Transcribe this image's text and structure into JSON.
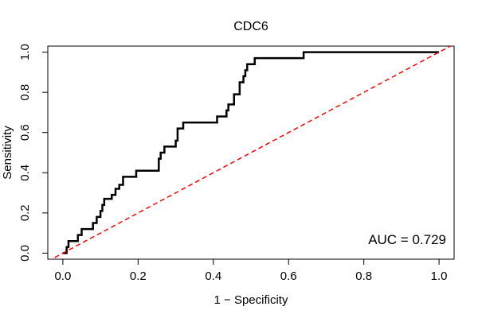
{
  "chart_data": {
    "type": "line",
    "title": "CDC6",
    "xlabel": "1 − Specificity",
    "ylabel": "Sensitivity",
    "xlim": [
      -0.04,
      1.04
    ],
    "ylim": [
      -0.03,
      1.03
    ],
    "xticks": [
      0.0,
      0.2,
      0.4,
      0.6,
      0.8,
      1.0
    ],
    "xtick_labels": [
      "0.0",
      "0.2",
      "0.4",
      "0.6",
      "0.8",
      "1.0"
    ],
    "yticks": [
      0.0,
      0.2,
      0.4,
      0.6,
      0.8,
      1.0
    ],
    "ytick_labels": [
      "0.0",
      "0.2",
      "0.4",
      "0.6",
      "0.8",
      "1.0"
    ],
    "grid": false,
    "annotation": "AUC = 0.729",
    "series": [
      {
        "color": "#000000",
        "style": "solid",
        "x": [
          0.0,
          0.01,
          0.01,
          0.015,
          0.015,
          0.04,
          0.04,
          0.05,
          0.05,
          0.08,
          0.08,
          0.09,
          0.09,
          0.1,
          0.1,
          0.105,
          0.105,
          0.11,
          0.11,
          0.13,
          0.13,
          0.14,
          0.14,
          0.15,
          0.15,
          0.16,
          0.16,
          0.195,
          0.195,
          0.21,
          0.21,
          0.255,
          0.255,
          0.26,
          0.26,
          0.27,
          0.27,
          0.3,
          0.3,
          0.305,
          0.305,
          0.32,
          0.32,
          0.41,
          0.41,
          0.435,
          0.435,
          0.44,
          0.44,
          0.455,
          0.455,
          0.47,
          0.47,
          0.48,
          0.48,
          0.485,
          0.485,
          0.49,
          0.49,
          0.5,
          0.5,
          0.51,
          0.51,
          0.52,
          0.52,
          0.64,
          0.64,
          1.0
        ],
        "y": [
          0.0,
          0.0,
          0.03,
          0.03,
          0.06,
          0.06,
          0.09,
          0.09,
          0.12,
          0.12,
          0.15,
          0.15,
          0.18,
          0.18,
          0.21,
          0.21,
          0.24,
          0.24,
          0.27,
          0.27,
          0.29,
          0.29,
          0.32,
          0.32,
          0.34,
          0.34,
          0.38,
          0.38,
          0.41,
          0.41,
          0.41,
          0.41,
          0.47,
          0.47,
          0.5,
          0.5,
          0.53,
          0.53,
          0.56,
          0.56,
          0.62,
          0.62,
          0.65,
          0.65,
          0.68,
          0.68,
          0.71,
          0.71,
          0.74,
          0.74,
          0.79,
          0.79,
          0.85,
          0.85,
          0.88,
          0.88,
          0.91,
          0.91,
          0.94,
          0.94,
          0.94,
          0.94,
          0.97,
          0.97,
          0.97,
          0.97,
          1.0,
          1.0
        ]
      },
      {
        "color": "#ff0000",
        "style": "dashed",
        "x": [
          -0.04,
          1.04
        ],
        "y": [
          -0.04,
          1.04
        ]
      }
    ]
  }
}
